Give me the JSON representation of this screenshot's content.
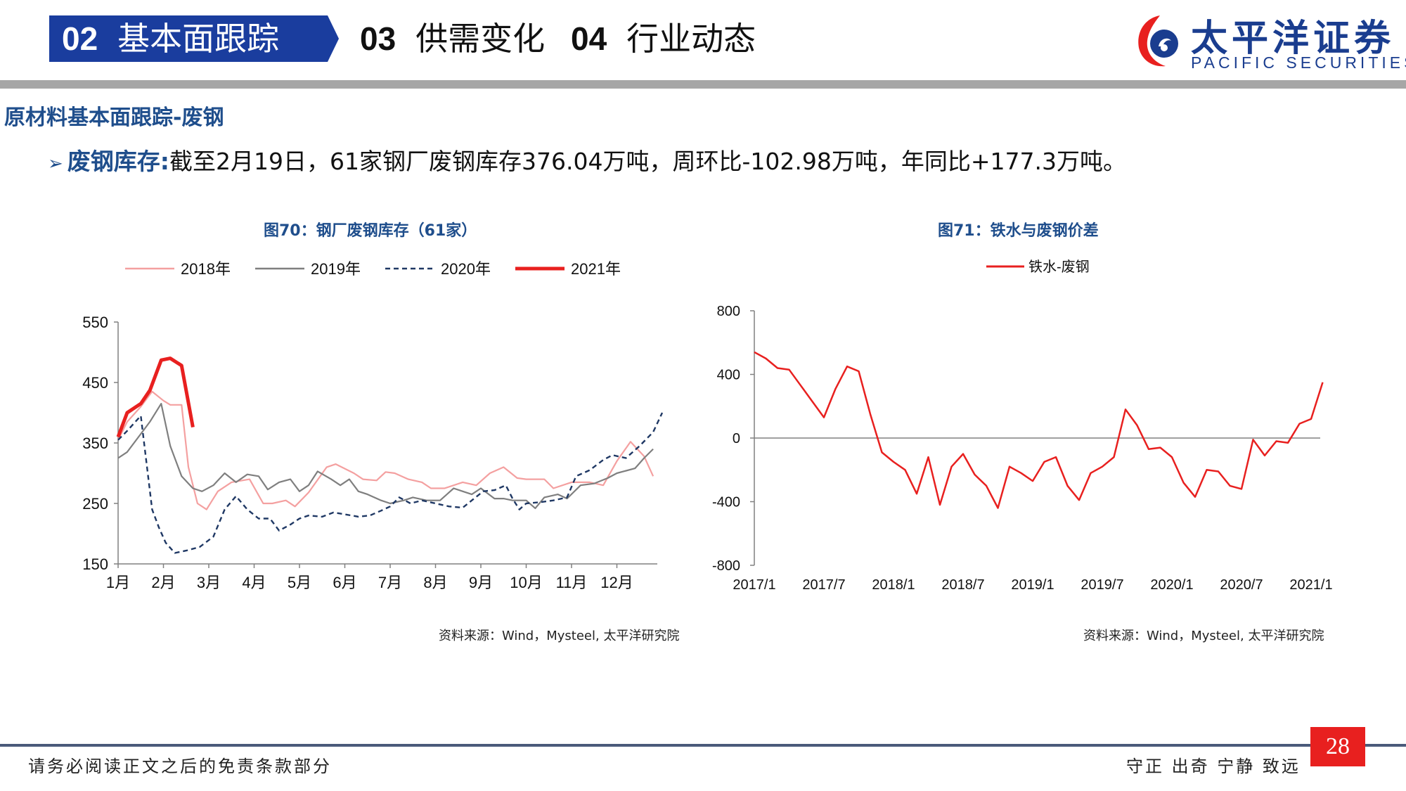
{
  "header": {
    "tabs": [
      {
        "num": "02",
        "label": "基本面跟踪",
        "active": true
      },
      {
        "num": "03",
        "label": "供需变化",
        "active": false
      },
      {
        "num": "04",
        "label": "行业动态",
        "active": false
      }
    ],
    "logo_cn": "太平洋证券",
    "logo_en": "PACIFIC SECURITIES",
    "colors": {
      "brand_blue": "#1a3d8f",
      "tab_blue": "#1a3d9e",
      "accent_red": "#e8201f"
    }
  },
  "section_title": "原材料基本面跟踪-废钢",
  "bullet": {
    "label": "废钢库存:",
    "text": "截至2月19日，61家钢厂废钢库存376.04万吨，周环比-102.98万吨，年同比+177.3万吨。"
  },
  "chart_data": [
    {
      "type": "line",
      "title": "图70：钢厂废钢库存（61家）",
      "source": "资料来源：Wind，Mysteel, 太平洋研究院",
      "x_labels": [
        "1月",
        "2月",
        "3月",
        "4月",
        "5月",
        "6月",
        "7月",
        "8月",
        "9月",
        "10月",
        "11月",
        "12月"
      ],
      "x_note": "x values are months, 1 = January",
      "ylim": [
        150,
        550
      ],
      "y_ticks": [
        150,
        250,
        350,
        450,
        550
      ],
      "legend": "top",
      "series": [
        {
          "name": "2018年",
          "color": "#f4a0a0",
          "style": "solid",
          "x": [
            1.0,
            1.2,
            1.5,
            1.75,
            2.0,
            2.15,
            2.4,
            2.55,
            2.75,
            2.95,
            3.2,
            3.5,
            3.9,
            4.2,
            4.4,
            4.7,
            4.9,
            5.2,
            5.6,
            5.8,
            6.2,
            6.4,
            6.7,
            6.9,
            7.1,
            7.4,
            7.7,
            7.9,
            8.2,
            8.6,
            8.9,
            9.2,
            9.5,
            9.8,
            10.0,
            10.4,
            10.6,
            11.0,
            11.2,
            11.4,
            11.7,
            12.0,
            12.3,
            12.6,
            12.8
          ],
          "y": [
            355,
            385,
            410,
            435,
            420,
            413,
            413,
            310,
            250,
            240,
            270,
            285,
            290,
            250,
            250,
            255,
            245,
            268,
            310,
            315,
            300,
            290,
            288,
            302,
            300,
            290,
            285,
            275,
            275,
            285,
            280,
            300,
            310,
            292,
            290,
            290,
            275,
            285,
            285,
            285,
            280,
            320,
            352,
            328,
            295
          ]
        },
        {
          "name": "2019年",
          "color": "#7f7f7f",
          "style": "solid",
          "x": [
            1.0,
            1.2,
            1.5,
            1.7,
            1.95,
            2.15,
            2.4,
            2.65,
            2.85,
            3.1,
            3.35,
            3.6,
            3.85,
            4.1,
            4.3,
            4.55,
            4.8,
            5.0,
            5.2,
            5.4,
            5.7,
            5.9,
            6.1,
            6.3,
            6.5,
            6.8,
            7.0,
            7.3,
            7.5,
            7.8,
            8.1,
            8.4,
            8.6,
            8.8,
            9.0,
            9.3,
            9.5,
            9.7,
            10.0,
            10.2,
            10.4,
            10.7,
            10.9,
            11.2,
            11.5,
            11.8,
            12.0,
            12.4,
            12.6,
            12.8
          ],
          "y": [
            325,
            335,
            365,
            385,
            415,
            345,
            295,
            275,
            270,
            280,
            300,
            285,
            298,
            295,
            273,
            285,
            290,
            270,
            280,
            303,
            290,
            280,
            290,
            270,
            265,
            255,
            250,
            255,
            260,
            255,
            255,
            275,
            270,
            265,
            275,
            258,
            258,
            255,
            255,
            242,
            260,
            265,
            258,
            280,
            283,
            292,
            300,
            308,
            325,
            340
          ]
        },
        {
          "name": "2020年",
          "color": "#1f3864",
          "style": "dashed",
          "x": [
            1.0,
            1.2,
            1.5,
            1.75,
            1.9,
            2.05,
            2.25,
            2.5,
            2.8,
            3.1,
            3.35,
            3.6,
            3.85,
            4.1,
            4.35,
            4.55,
            4.8,
            5.0,
            5.2,
            5.5,
            5.75,
            6.0,
            6.3,
            6.55,
            6.8,
            7.0,
            7.2,
            7.45,
            7.7,
            8.0,
            8.3,
            8.6,
            8.8,
            9.05,
            9.3,
            9.55,
            9.7,
            9.85,
            10.0,
            10.3,
            10.6,
            10.9,
            11.1,
            11.4,
            11.7,
            11.9,
            12.2,
            12.5,
            12.8,
            13.0
          ],
          "y": [
            355,
            370,
            395,
            240,
            210,
            185,
            168,
            172,
            178,
            195,
            240,
            262,
            240,
            225,
            225,
            205,
            215,
            225,
            230,
            228,
            235,
            232,
            228,
            230,
            238,
            245,
            260,
            250,
            255,
            250,
            245,
            243,
            255,
            270,
            272,
            280,
            258,
            240,
            250,
            252,
            255,
            260,
            295,
            305,
            322,
            330,
            325,
            345,
            368,
            400
          ]
        },
        {
          "name": "2021年",
          "color": "#e8201f",
          "style": "solid-thick",
          "x": [
            1.0,
            1.2,
            1.5,
            1.7,
            1.95,
            2.15,
            2.4,
            2.65
          ],
          "y": [
            360,
            400,
            415,
            437,
            487,
            490,
            478,
            376
          ]
        }
      ]
    },
    {
      "type": "line",
      "title": "图71：铁水与废钢价差",
      "source": "资料来源：Wind，Mysteel, 太平洋研究院",
      "x_labels": [
        "2017/1",
        "2017/7",
        "2018/1",
        "2018/7",
        "2019/1",
        "2019/7",
        "2020/1",
        "2020/7",
        "2021/1"
      ],
      "ylim": [
        -800,
        800
      ],
      "y_ticks": [
        800,
        400,
        0,
        -400,
        -800
      ],
      "legend": "top",
      "series": [
        {
          "name": "铁水-废钢",
          "color": "#e8201f",
          "x": [
            "2017/1",
            "2017/2",
            "2017/3",
            "2017/4",
            "2017/5",
            "2017/6",
            "2017/7",
            "2017/8",
            "2017/9",
            "2017/10",
            "2017/11",
            "2017/12",
            "2018/1",
            "2018/2",
            "2018/3",
            "2018/4",
            "2018/5",
            "2018/6",
            "2018/7",
            "2018/8",
            "2018/9",
            "2018/10",
            "2018/11",
            "2018/12",
            "2019/1",
            "2019/2",
            "2019/3",
            "2019/4",
            "2019/5",
            "2019/6",
            "2019/7",
            "2019/8",
            "2019/9",
            "2019/10",
            "2019/11",
            "2019/12",
            "2020/1",
            "2020/2",
            "2020/3",
            "2020/4",
            "2020/5",
            "2020/6",
            "2020/7",
            "2020/8",
            "2020/9",
            "2020/10",
            "2020/11",
            "2020/12",
            "2021/1",
            "2021/2"
          ],
          "y": [
            540,
            500,
            440,
            430,
            330,
            230,
            130,
            310,
            450,
            420,
            150,
            -90,
            -150,
            -200,
            -350,
            -120,
            -420,
            -180,
            -100,
            -230,
            -300,
            -440,
            -180,
            -220,
            -270,
            -150,
            -120,
            -300,
            -390,
            -220,
            -180,
            -120,
            180,
            80,
            -70,
            -60,
            -120,
            -280,
            -370,
            -200,
            -210,
            -300,
            -320,
            -10,
            -110,
            -20,
            -30,
            90,
            120,
            350
          ]
        }
      ]
    }
  ],
  "footer": {
    "left": "请务必阅读正文之后的免责条款部分",
    "right": "守正 出奇 宁静 致远",
    "page": "28"
  }
}
